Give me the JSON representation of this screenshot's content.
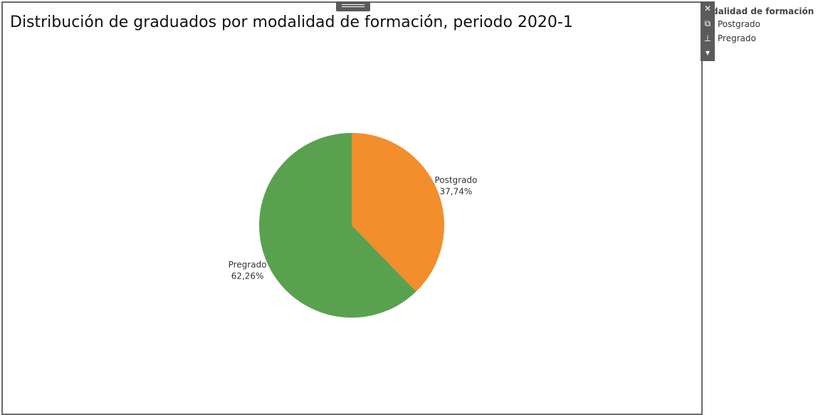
{
  "title": "Distribución de graduados por modalidad de formación, periodo 2020-1",
  "legend": {
    "title": "dalidad de formación",
    "items": [
      "Postgrado",
      "Pregrado"
    ]
  },
  "toolbar": {
    "icons": [
      "close-icon",
      "popout-icon",
      "pin-icon",
      "dropdown-icon"
    ]
  },
  "colors": {
    "Postgrado": "#f28e2b",
    "Pregrado": "#59a14f"
  },
  "chart_data": {
    "type": "pie",
    "title": "Distribución de graduados por modalidad de formación, periodo 2020-1",
    "slices": [
      {
        "name": "Postgrado",
        "value": 37.74,
        "label": "37,74%"
      },
      {
        "name": "Pregrado",
        "value": 62.26,
        "label": "62,26%"
      }
    ],
    "legend": "top-right"
  }
}
